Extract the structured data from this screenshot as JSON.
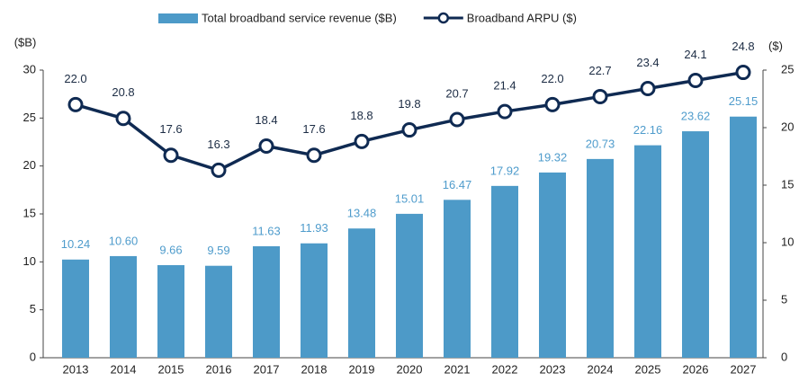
{
  "chart_data": {
    "type": "bar_line",
    "categories": [
      "2013",
      "2014",
      "2015",
      "2016",
      "2017",
      "2018",
      "2019",
      "2020",
      "2021",
      "2022",
      "2023",
      "2024",
      "2025",
      "2026",
      "2027"
    ],
    "y_label": "($B)",
    "y2_label": "($)",
    "ylim": [
      0,
      30
    ],
    "yticks": [
      0,
      5,
      10,
      15,
      20,
      25,
      30
    ],
    "y2lim": [
      0,
      25
    ],
    "y2ticks": [
      0,
      5,
      10,
      15,
      20,
      25
    ],
    "series": [
      {
        "name": "Total broadband service revenue ($B)",
        "type": "bar",
        "color": "#4d9ac8",
        "values": [
          10.24,
          10.6,
          9.66,
          9.59,
          11.63,
          11.93,
          13.48,
          15.01,
          16.47,
          17.92,
          19.32,
          20.73,
          22.16,
          23.62,
          25.15
        ],
        "value_labels": [
          "10.24",
          "10.60",
          "9.66",
          "9.59",
          "11.63",
          "11.93",
          "13.48",
          "15.01",
          "16.47",
          "17.92",
          "19.32",
          "20.73",
          "22.16",
          "23.62",
          "25.15"
        ]
      },
      {
        "name": "Broadband ARPU ($)",
        "type": "line",
        "axis": "y2",
        "color": "#0f2a52",
        "values": [
          22.0,
          20.8,
          17.6,
          16.3,
          18.4,
          17.6,
          18.8,
          19.8,
          20.7,
          21.4,
          22.0,
          22.7,
          23.4,
          24.1,
          24.8
        ],
        "value_labels": [
          "22.0",
          "20.8",
          "17.6",
          "16.3",
          "18.4",
          "17.6",
          "18.8",
          "19.8",
          "20.7",
          "21.4",
          "22.0",
          "22.7",
          "23.4",
          "24.1",
          "24.8"
        ]
      }
    ]
  }
}
